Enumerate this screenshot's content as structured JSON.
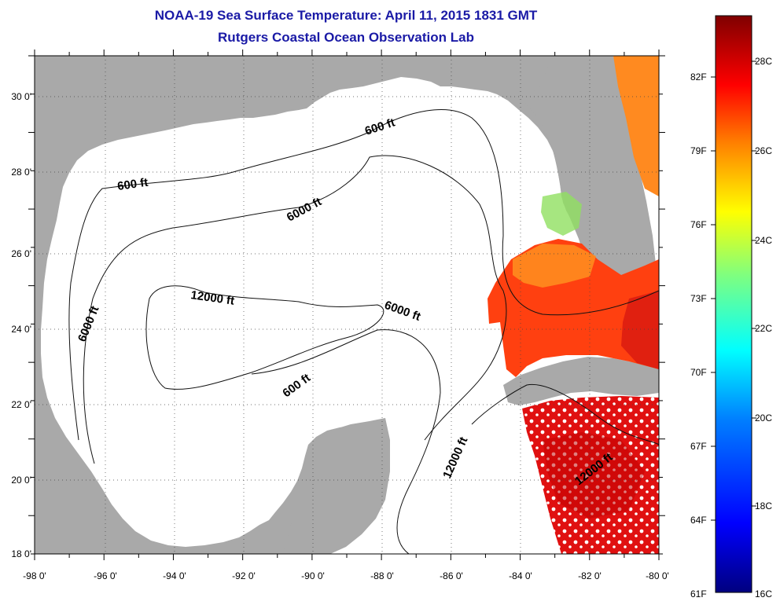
{
  "title": "NOAA-19 Sea Surface Temperature:  April 11, 2015 1831 GMT",
  "subtitle": "Rutgers Coastal Ocean Observation Lab",
  "map": {
    "lon_labels": [
      "-98 0'",
      "-96 0'",
      "-94 0'",
      "-92 0'",
      "-90 0'",
      "-88 0'",
      "-86 0'",
      "-84 0'",
      "-82 0'",
      "-80 0'"
    ],
    "lat_labels": [
      "30 0'",
      "28 0'",
      "26 0'",
      "24 0'",
      "22 0'",
      "20 0'",
      "18 0'"
    ],
    "land_color": "#a9a9a9",
    "water_color": "#ffffff",
    "contour_labels": [
      "600 ft",
      "600 ft",
      "6000 ft",
      "6000 ft",
      "12000 ft",
      "6000 ft",
      "600 ft",
      "12000 ft",
      "12000 ft"
    ]
  },
  "colorbar": {
    "fahrenheit": [
      "82F",
      "79F",
      "76F",
      "73F",
      "70F",
      "67F",
      "64F",
      "61F"
    ],
    "celsius": [
      "28C",
      "26C",
      "24C",
      "22C",
      "20C",
      "18C",
      "16C"
    ],
    "colors": [
      "#00007f",
      "#0000ff",
      "#007fff",
      "#00ffff",
      "#7fff7f",
      "#ffff00",
      "#ff7f00",
      "#ff0000",
      "#7f0000"
    ]
  }
}
